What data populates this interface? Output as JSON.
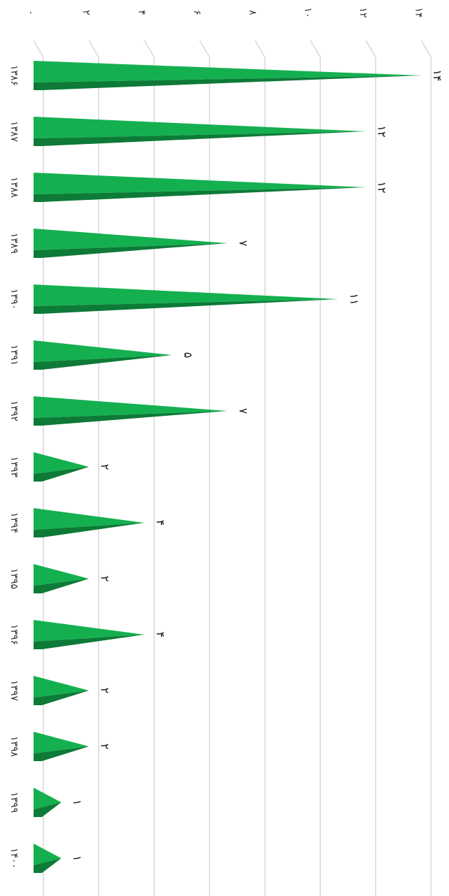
{
  "chart_data": {
    "type": "bar",
    "orientation": "horizontal",
    "categories": [
      "۱۳۸۶",
      "۱۳۸۷",
      "۱۳۸۸",
      "۱۳۸۹",
      "۱۳۹۰",
      "۱۳۹۱",
      "۱۳۹۲",
      "۱۳۹۳",
      "۱۳۹۴",
      "۱۳۹۵",
      "۱۳۹۶",
      "۱۳۹۷",
      "۱۳۹۸",
      "۱۳۹۹",
      "۱۴۰۰"
    ],
    "values": [
      14,
      12,
      12,
      7,
      11,
      5,
      7,
      2,
      4,
      2,
      4,
      2,
      2,
      1,
      1
    ],
    "value_labels": [
      "۱۴",
      "۱۲",
      "۱۲",
      "۷",
      "۱۱",
      "۵",
      "۷",
      "۲",
      "۴",
      "۲",
      "۴",
      "۲",
      "۲",
      "۱",
      "۱"
    ],
    "xlim": [
      0,
      14
    ],
    "ticks": [
      0,
      2,
      4,
      6,
      8,
      10,
      12,
      14
    ],
    "tick_labels": [
      "۰",
      "۲",
      "۴",
      "۶",
      "۸",
      "۱۰",
      "۱۲",
      "۱۴"
    ],
    "title": "",
    "xlabel": "",
    "ylabel": "",
    "grid": true,
    "colors": {
      "bar_light": "#14b050",
      "bar_dark": "#0d7a37",
      "grid": "#d9d9d9"
    }
  }
}
